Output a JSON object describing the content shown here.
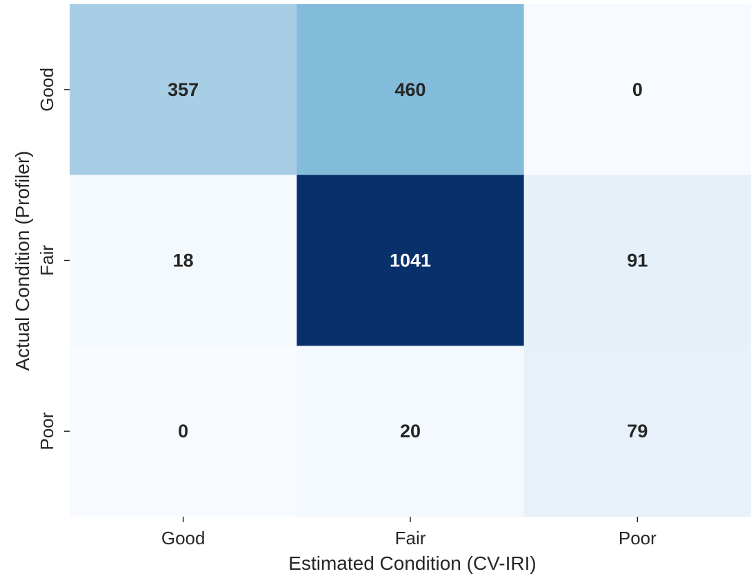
{
  "chart_data": {
    "type": "heatmap",
    "title": "",
    "xlabel": "Estimated Condition (CV-IRI)",
    "ylabel": "Actual Condition (Profiler)",
    "x_categories": [
      "Good",
      "Fair",
      "Poor"
    ],
    "y_categories": [
      "Good",
      "Fair",
      "Poor"
    ],
    "values": [
      [
        357,
        460,
        0
      ],
      [
        18,
        1041,
        91
      ],
      [
        0,
        20,
        79
      ]
    ],
    "colormap": "Blues",
    "vmin": 0,
    "vmax": 1041,
    "colorbar": false,
    "grid": false
  }
}
